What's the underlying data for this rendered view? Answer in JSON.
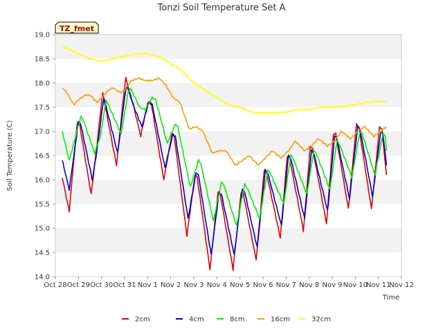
{
  "chart_data": {
    "type": "line",
    "title": "Tonzi Soil Temperature Set A",
    "xlabel": "Time",
    "ylabel": "Soil Temperature (C)",
    "badge": "TZ_fmet",
    "ylim": [
      14.0,
      19.0
    ],
    "yticks": [
      14.0,
      14.5,
      15.0,
      15.5,
      16.0,
      16.5,
      17.0,
      17.5,
      18.0,
      18.5,
      19.0
    ],
    "ytick_labels": [
      "14.0",
      "14.5",
      "15.0",
      "15.5",
      "16.0",
      "16.5",
      "17.0",
      "17.5",
      "18.0",
      "18.5",
      "19.0"
    ],
    "xlim": [
      0,
      15
    ],
    "xticks": [
      0,
      1,
      2,
      3,
      4,
      5,
      6,
      7,
      8,
      9,
      10,
      11,
      12,
      13,
      14,
      15
    ],
    "xtick_labels": [
      "Oct 28",
      "Oct 29",
      "Oct 30",
      "Oct 31",
      "Nov 1",
      "Nov 2",
      "Nov 3",
      "Nov 4",
      "Nov 5",
      "Nov 6",
      "Nov 7",
      "Nov 8",
      "Nov 9",
      "Nov 10",
      "Nov 11",
      "Nov 12"
    ],
    "grid": "horizontal bands",
    "legend_position": "bottom",
    "series": [
      {
        "name": "2cm",
        "color": "#dd0000",
        "points": [
          [
            0.3,
            16.05
          ],
          [
            0.6,
            15.35
          ],
          [
            0.95,
            17.2
          ],
          [
            1.05,
            17.15
          ],
          [
            1.55,
            15.7
          ],
          [
            1.75,
            16.5
          ],
          [
            2.05,
            17.8
          ],
          [
            2.65,
            16.3
          ],
          [
            2.95,
            17.7
          ],
          [
            3.05,
            18.1
          ],
          [
            3.4,
            17.5
          ],
          [
            3.7,
            16.9
          ],
          [
            4.0,
            17.6
          ],
          [
            4.15,
            17.6
          ],
          [
            4.7,
            16.0
          ],
          [
            5.05,
            16.95
          ],
          [
            5.15,
            16.9
          ],
          [
            5.7,
            14.85
          ],
          [
            6.05,
            16.1
          ],
          [
            6.15,
            16.05
          ],
          [
            6.7,
            14.15
          ],
          [
            7.05,
            15.75
          ],
          [
            7.15,
            15.7
          ],
          [
            7.7,
            14.15
          ],
          [
            8.05,
            15.75
          ],
          [
            8.15,
            15.7
          ],
          [
            8.7,
            14.35
          ],
          [
            9.05,
            16.2
          ],
          [
            9.15,
            16.15
          ],
          [
            9.75,
            14.8
          ],
          [
            10.05,
            16.5
          ],
          [
            10.15,
            16.45
          ],
          [
            10.75,
            14.95
          ],
          [
            11.05,
            16.7
          ],
          [
            11.15,
            16.65
          ],
          [
            11.75,
            15.1
          ],
          [
            12.05,
            16.95
          ],
          [
            12.15,
            16.95
          ],
          [
            12.7,
            15.4
          ],
          [
            13.05,
            17.15
          ],
          [
            13.15,
            17.1
          ],
          [
            13.7,
            15.4
          ],
          [
            14.05,
            17.1
          ],
          [
            14.15,
            17.05
          ],
          [
            14.35,
            16.1
          ]
        ]
      },
      {
        "name": "4cm",
        "color": "#0000cc",
        "points": [
          [
            0.3,
            16.4
          ],
          [
            0.6,
            15.8
          ],
          [
            1.0,
            17.2
          ],
          [
            1.1,
            17.15
          ],
          [
            1.6,
            16.0
          ],
          [
            1.8,
            16.6
          ],
          [
            2.1,
            17.7
          ],
          [
            2.7,
            16.55
          ],
          [
            3.0,
            17.7
          ],
          [
            3.1,
            17.95
          ],
          [
            3.45,
            17.45
          ],
          [
            3.75,
            17.1
          ],
          [
            4.05,
            17.6
          ],
          [
            4.2,
            17.55
          ],
          [
            4.75,
            16.25
          ],
          [
            5.1,
            16.95
          ],
          [
            5.2,
            16.9
          ],
          [
            5.75,
            15.2
          ],
          [
            6.1,
            16.15
          ],
          [
            6.2,
            16.1
          ],
          [
            6.75,
            14.45
          ],
          [
            7.1,
            15.75
          ],
          [
            7.2,
            15.7
          ],
          [
            7.75,
            14.45
          ],
          [
            8.1,
            15.8
          ],
          [
            8.2,
            15.75
          ],
          [
            8.75,
            14.6
          ],
          [
            9.1,
            16.2
          ],
          [
            9.2,
            16.15
          ],
          [
            9.8,
            15.05
          ],
          [
            10.1,
            16.5
          ],
          [
            10.2,
            16.45
          ],
          [
            10.8,
            15.2
          ],
          [
            11.1,
            16.6
          ],
          [
            11.2,
            16.55
          ],
          [
            11.8,
            15.35
          ],
          [
            12.1,
            16.9
          ],
          [
            12.2,
            16.85
          ],
          [
            12.75,
            15.6
          ],
          [
            13.1,
            17.1
          ],
          [
            13.2,
            17.05
          ],
          [
            13.75,
            15.65
          ],
          [
            14.1,
            17.0
          ],
          [
            14.2,
            16.95
          ],
          [
            14.35,
            16.3
          ]
        ]
      },
      {
        "name": "8cm",
        "color": "#00ee00",
        "points": [
          [
            0.3,
            17.0
          ],
          [
            0.6,
            16.4
          ],
          [
            1.1,
            17.3
          ],
          [
            1.2,
            17.25
          ],
          [
            1.7,
            16.55
          ],
          [
            1.95,
            16.9
          ],
          [
            2.2,
            17.65
          ],
          [
            2.85,
            16.95
          ],
          [
            3.15,
            17.8
          ],
          [
            3.25,
            17.9
          ],
          [
            3.65,
            17.5
          ],
          [
            3.9,
            17.45
          ],
          [
            4.2,
            17.7
          ],
          [
            4.35,
            17.65
          ],
          [
            4.85,
            16.75
          ],
          [
            5.2,
            17.15
          ],
          [
            5.3,
            17.1
          ],
          [
            5.85,
            15.85
          ],
          [
            6.2,
            16.4
          ],
          [
            6.3,
            16.35
          ],
          [
            6.85,
            15.15
          ],
          [
            7.2,
            15.95
          ],
          [
            7.3,
            15.9
          ],
          [
            7.85,
            15.05
          ],
          [
            8.2,
            15.9
          ],
          [
            8.3,
            15.85
          ],
          [
            8.85,
            15.2
          ],
          [
            9.2,
            16.2
          ],
          [
            9.3,
            16.15
          ],
          [
            9.9,
            15.5
          ],
          [
            10.2,
            16.5
          ],
          [
            10.3,
            16.45
          ],
          [
            10.9,
            15.7
          ],
          [
            11.2,
            16.6
          ],
          [
            11.3,
            16.55
          ],
          [
            11.9,
            15.8
          ],
          [
            12.2,
            16.8
          ],
          [
            12.3,
            16.75
          ],
          [
            12.85,
            16.05
          ],
          [
            13.2,
            17.0
          ],
          [
            13.3,
            16.95
          ],
          [
            13.85,
            16.1
          ],
          [
            14.2,
            16.95
          ],
          [
            14.3,
            16.9
          ],
          [
            14.35,
            16.6
          ]
        ]
      },
      {
        "name": "16cm",
        "color": "#ff9900",
        "points": [
          [
            0.3,
            17.9
          ],
          [
            0.5,
            17.8
          ],
          [
            0.8,
            17.55
          ],
          [
            1.0,
            17.65
          ],
          [
            1.3,
            17.75
          ],
          [
            1.5,
            17.75
          ],
          [
            1.8,
            17.6
          ],
          [
            2.0,
            17.7
          ],
          [
            2.3,
            17.85
          ],
          [
            2.5,
            17.9
          ],
          [
            2.8,
            17.8
          ],
          [
            3.0,
            17.85
          ],
          [
            3.3,
            18.05
          ],
          [
            3.6,
            18.1
          ],
          [
            3.9,
            18.05
          ],
          [
            4.2,
            18.05
          ],
          [
            4.5,
            18.1
          ],
          [
            4.8,
            17.95
          ],
          [
            5.1,
            17.7
          ],
          [
            5.4,
            17.6
          ],
          [
            5.8,
            17.05
          ],
          [
            6.1,
            17.1
          ],
          [
            6.4,
            17.0
          ],
          [
            6.8,
            16.55
          ],
          [
            7.1,
            16.6
          ],
          [
            7.4,
            16.6
          ],
          [
            7.8,
            16.3
          ],
          [
            8.1,
            16.4
          ],
          [
            8.4,
            16.5
          ],
          [
            8.8,
            16.3
          ],
          [
            9.1,
            16.45
          ],
          [
            9.4,
            16.6
          ],
          [
            9.8,
            16.45
          ],
          [
            10.1,
            16.6
          ],
          [
            10.4,
            16.8
          ],
          [
            10.8,
            16.6
          ],
          [
            11.1,
            16.7
          ],
          [
            11.4,
            16.85
          ],
          [
            11.8,
            16.7
          ],
          [
            12.1,
            16.8
          ],
          [
            12.4,
            17.0
          ],
          [
            12.8,
            16.85
          ],
          [
            13.1,
            17.0
          ],
          [
            13.4,
            17.1
          ],
          [
            13.8,
            16.9
          ],
          [
            14.1,
            17.0
          ],
          [
            14.35,
            17.1
          ]
        ]
      },
      {
        "name": "32cm",
        "color": "#ffff00",
        "points": [
          [
            0.3,
            18.75
          ],
          [
            0.6,
            18.7
          ],
          [
            1.0,
            18.6
          ],
          [
            1.5,
            18.5
          ],
          [
            2.0,
            18.45
          ],
          [
            2.5,
            18.5
          ],
          [
            3.0,
            18.55
          ],
          [
            3.5,
            18.6
          ],
          [
            4.0,
            18.6
          ],
          [
            4.5,
            18.55
          ],
          [
            5.0,
            18.4
          ],
          [
            5.5,
            18.25
          ],
          [
            6.0,
            18.0
          ],
          [
            6.5,
            17.85
          ],
          [
            7.0,
            17.7
          ],
          [
            7.5,
            17.55
          ],
          [
            8.0,
            17.5
          ],
          [
            8.5,
            17.4
          ],
          [
            9.0,
            17.38
          ],
          [
            9.5,
            17.38
          ],
          [
            10.0,
            17.4
          ],
          [
            10.5,
            17.45
          ],
          [
            11.0,
            17.45
          ],
          [
            11.5,
            17.5
          ],
          [
            12.0,
            17.5
          ],
          [
            12.5,
            17.52
          ],
          [
            13.0,
            17.55
          ],
          [
            13.5,
            17.6
          ],
          [
            14.0,
            17.62
          ],
          [
            14.35,
            17.62
          ]
        ]
      }
    ]
  }
}
